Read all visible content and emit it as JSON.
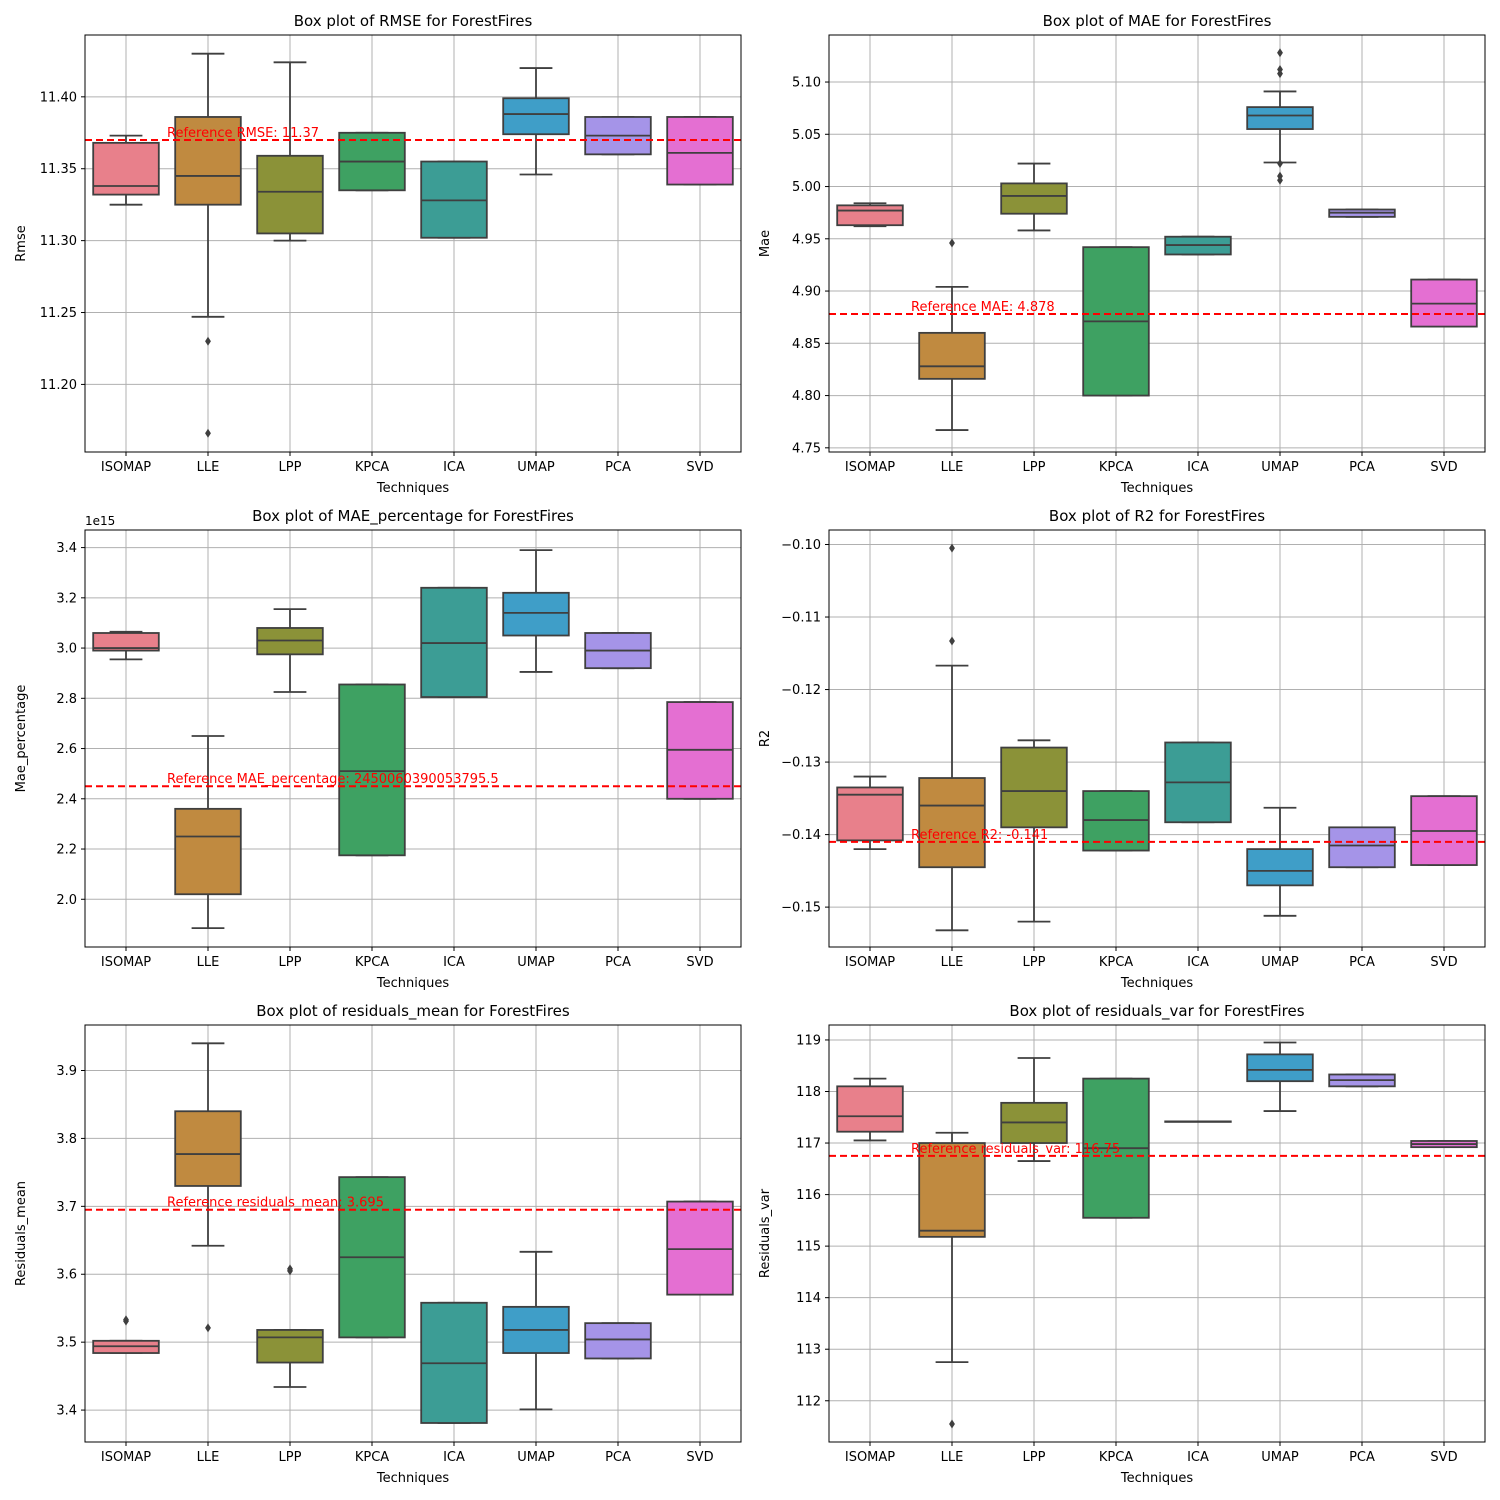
{
  "chart_data": [
    {
      "type": "box",
      "title": "Box plot of RMSE for ForestFires",
      "xlabel": "Techniques",
      "ylabel": "Rmse",
      "categories": [
        "ISOMAP",
        "LLE",
        "LPP",
        "KPCA",
        "ICA",
        "UMAP",
        "PCA",
        "SVD"
      ],
      "colors": [
        "#e8808b",
        "#c08a40",
        "#8b9238",
        "#3ea162",
        "#3c9d95",
        "#3f9ec8",
        "#a594e8",
        "#e46fd2"
      ],
      "yticks": [
        11.2,
        11.25,
        11.3,
        11.35,
        11.4
      ],
      "ytick_labels": [
        "11.20",
        "11.25",
        "11.30",
        "11.35",
        "11.40"
      ],
      "ylim": [
        11.153,
        11.443
      ],
      "grid": true,
      "boxes": [
        {
          "whislo": 11.325,
          "q1": 11.332,
          "median": 11.338,
          "q3": 11.368,
          "whishi": 11.373,
          "fliers": []
        },
        {
          "whislo": 11.247,
          "q1": 11.325,
          "median": 11.345,
          "q3": 11.386,
          "whishi": 11.43,
          "fliers": [
            11.23,
            11.166
          ]
        },
        {
          "whislo": 11.3,
          "q1": 11.305,
          "median": 11.334,
          "q3": 11.359,
          "whishi": 11.424,
          "fliers": []
        },
        {
          "whislo": 11.335,
          "q1": 11.335,
          "median": 11.355,
          "q3": 11.375,
          "whishi": 11.375,
          "fliers": []
        },
        {
          "whislo": 11.302,
          "q1": 11.302,
          "median": 11.328,
          "q3": 11.355,
          "whishi": 11.355,
          "fliers": []
        },
        {
          "whislo": 11.346,
          "q1": 11.374,
          "median": 11.388,
          "q3": 11.399,
          "whishi": 11.42,
          "fliers": []
        },
        {
          "whislo": 11.36,
          "q1": 11.36,
          "median": 11.373,
          "q3": 11.386,
          "whishi": 11.386,
          "fliers": []
        },
        {
          "whislo": 11.339,
          "q1": 11.339,
          "median": 11.361,
          "q3": 11.386,
          "whishi": 11.386,
          "fliers": []
        }
      ],
      "reference": {
        "value": 11.37,
        "label": "Reference RMSE: 11.37"
      }
    },
    {
      "type": "box",
      "title": "Box plot of MAE for ForestFires",
      "xlabel": "Techniques",
      "ylabel": "Mae",
      "categories": [
        "ISOMAP",
        "LLE",
        "LPP",
        "KPCA",
        "ICA",
        "UMAP",
        "PCA",
        "SVD"
      ],
      "colors": [
        "#e8808b",
        "#c08a40",
        "#8b9238",
        "#3ea162",
        "#3c9d95",
        "#3f9ec8",
        "#a594e8",
        "#e46fd2"
      ],
      "yticks": [
        4.75,
        4.8,
        4.85,
        4.9,
        4.95,
        5.0,
        5.05,
        5.1
      ],
      "ytick_labels": [
        "4.75",
        "4.80",
        "4.85",
        "4.90",
        "4.95",
        "5.00",
        "5.05",
        "5.10"
      ],
      "ylim": [
        4.746,
        5.145
      ],
      "grid": true,
      "boxes": [
        {
          "whislo": 4.962,
          "q1": 4.963,
          "median": 4.977,
          "q3": 4.982,
          "whishi": 4.984,
          "fliers": []
        },
        {
          "whislo": 4.767,
          "q1": 4.816,
          "median": 4.828,
          "q3": 4.86,
          "whishi": 4.904,
          "fliers": [
            4.946
          ]
        },
        {
          "whislo": 4.958,
          "q1": 4.974,
          "median": 4.991,
          "q3": 5.003,
          "whishi": 5.022,
          "fliers": []
        },
        {
          "whislo": 4.8,
          "q1": 4.8,
          "median": 4.871,
          "q3": 4.942,
          "whishi": 4.942,
          "fliers": []
        },
        {
          "whislo": 4.935,
          "q1": 4.935,
          "median": 4.944,
          "q3": 4.952,
          "whishi": 4.952,
          "fliers": []
        },
        {
          "whislo": 5.023,
          "q1": 5.055,
          "median": 5.068,
          "q3": 5.076,
          "whishi": 5.091,
          "fliers": [
            5.128,
            5.112,
            5.108,
            5.022,
            5.01,
            5.006
          ]
        },
        {
          "whislo": 4.971,
          "q1": 4.971,
          "median": 4.975,
          "q3": 4.978,
          "whishi": 4.978,
          "fliers": []
        },
        {
          "whislo": 4.866,
          "q1": 4.866,
          "median": 4.888,
          "q3": 4.911,
          "whishi": 4.911,
          "fliers": []
        }
      ],
      "reference": {
        "value": 4.878,
        "label": "Reference MAE: 4.878"
      }
    },
    {
      "type": "box",
      "title": "Box plot of MAE_percentage for ForestFires",
      "xlabel": "Techniques",
      "ylabel": "Mae_percentage",
      "offset_label": "1e15",
      "categories": [
        "ISOMAP",
        "LLE",
        "LPP",
        "KPCA",
        "ICA",
        "UMAP",
        "PCA",
        "SVD"
      ],
      "colors": [
        "#e8808b",
        "#c08a40",
        "#8b9238",
        "#3ea162",
        "#3c9d95",
        "#3f9ec8",
        "#a594e8",
        "#e46fd2"
      ],
      "yticks": [
        2.0,
        2.2,
        2.4,
        2.6,
        2.8,
        3.0,
        3.2,
        3.4
      ],
      "ytick_labels": [
        "2.0",
        "2.2",
        "2.4",
        "2.6",
        "2.8",
        "3.0",
        "3.2",
        "3.4"
      ],
      "ylim": [
        1.81,
        3.47
      ],
      "grid": true,
      "boxes": [
        {
          "whislo": 2.955,
          "q1": 2.99,
          "median": 3.0,
          "q3": 3.06,
          "whishi": 3.065,
          "fliers": []
        },
        {
          "whislo": 1.885,
          "q1": 2.02,
          "median": 2.25,
          "q3": 2.36,
          "whishi": 2.65,
          "fliers": []
        },
        {
          "whislo": 2.825,
          "q1": 2.975,
          "median": 3.03,
          "q3": 3.08,
          "whishi": 3.155,
          "fliers": []
        },
        {
          "whislo": 2.175,
          "q1": 2.175,
          "median": 2.51,
          "q3": 2.855,
          "whishi": 2.855,
          "fliers": []
        },
        {
          "whislo": 2.805,
          "q1": 2.805,
          "median": 3.02,
          "q3": 3.24,
          "whishi": 3.24,
          "fliers": []
        },
        {
          "whislo": 2.905,
          "q1": 3.05,
          "median": 3.14,
          "q3": 3.22,
          "whishi": 3.39,
          "fliers": []
        },
        {
          "whislo": 2.92,
          "q1": 2.92,
          "median": 2.99,
          "q3": 3.06,
          "whishi": 3.06,
          "fliers": []
        },
        {
          "whislo": 2.4,
          "q1": 2.4,
          "median": 2.595,
          "q3": 2.785,
          "whishi": 2.785,
          "fliers": []
        }
      ],
      "reference": {
        "value": 2.45,
        "label": "Reference MAE_percentage: 2450060390053795.5"
      }
    },
    {
      "type": "box",
      "title": "Box plot of R2 for ForestFires",
      "xlabel": "Techniques",
      "ylabel": "R2",
      "categories": [
        "ISOMAP",
        "LLE",
        "LPP",
        "KPCA",
        "ICA",
        "UMAP",
        "PCA",
        "SVD"
      ],
      "colors": [
        "#e8808b",
        "#c08a40",
        "#8b9238",
        "#3ea162",
        "#3c9d95",
        "#3f9ec8",
        "#a594e8",
        "#e46fd2"
      ],
      "yticks": [
        -0.15,
        -0.14,
        -0.13,
        -0.12,
        -0.11,
        -0.1
      ],
      "ytick_labels": [
        "−0.15",
        "−0.14",
        "−0.13",
        "−0.12",
        "−0.11",
        "−0.10"
      ],
      "ylim": [
        -0.1555,
        -0.098
      ],
      "grid": true,
      "boxes": [
        {
          "whislo": -0.142,
          "q1": -0.1408,
          "median": -0.1345,
          "q3": -0.1335,
          "whishi": -0.132,
          "fliers": []
        },
        {
          "whislo": -0.1532,
          "q1": -0.1445,
          "median": -0.136,
          "q3": -0.1322,
          "whishi": -0.1167,
          "fliers": [
            -0.1133,
            -0.1005
          ]
        },
        {
          "whislo": -0.152,
          "q1": -0.139,
          "median": -0.134,
          "q3": -0.128,
          "whishi": -0.127,
          "fliers": []
        },
        {
          "whislo": -0.1422,
          "q1": -0.1422,
          "median": -0.138,
          "q3": -0.134,
          "whishi": -0.134,
          "fliers": []
        },
        {
          "whislo": -0.1383,
          "q1": -0.1383,
          "median": -0.1328,
          "q3": -0.1273,
          "whishi": -0.1273,
          "fliers": []
        },
        {
          "whislo": -0.1512,
          "q1": -0.147,
          "median": -0.145,
          "q3": -0.142,
          "whishi": -0.1363,
          "fliers": []
        },
        {
          "whislo": -0.1445,
          "q1": -0.1445,
          "median": -0.1415,
          "q3": -0.139,
          "whishi": -0.139,
          "fliers": []
        },
        {
          "whislo": -0.1442,
          "q1": -0.1442,
          "median": -0.1395,
          "q3": -0.1347,
          "whishi": -0.1347,
          "fliers": []
        }
      ],
      "reference": {
        "value": -0.141,
        "label": "Reference R2: -0.141"
      }
    },
    {
      "type": "box",
      "title": "Box plot of residuals_mean for ForestFires",
      "xlabel": "Techniques",
      "ylabel": "Residuals_mean",
      "categories": [
        "ISOMAP",
        "LLE",
        "LPP",
        "KPCA",
        "ICA",
        "UMAP",
        "PCA",
        "SVD"
      ],
      "colors": [
        "#e8808b",
        "#c08a40",
        "#8b9238",
        "#3ea162",
        "#3c9d95",
        "#3f9ec8",
        "#a594e8",
        "#e46fd2"
      ],
      "yticks": [
        3.4,
        3.5,
        3.6,
        3.7,
        3.8,
        3.9
      ],
      "ytick_labels": [
        "3.4",
        "3.5",
        "3.6",
        "3.7",
        "3.8",
        "3.9"
      ],
      "ylim": [
        3.353,
        3.967
      ],
      "grid": true,
      "boxes": [
        {
          "whislo": 3.484,
          "q1": 3.484,
          "median": 3.494,
          "q3": 3.502,
          "whishi": 3.502,
          "fliers": [
            3.533,
            3.531
          ]
        },
        {
          "whislo": 3.642,
          "q1": 3.73,
          "median": 3.777,
          "q3": 3.84,
          "whishi": 3.94,
          "fliers": [
            3.521
          ]
        },
        {
          "whislo": 3.434,
          "q1": 3.47,
          "median": 3.507,
          "q3": 3.518,
          "whishi": 3.518,
          "fliers": [
            3.608,
            3.605
          ]
        },
        {
          "whislo": 3.507,
          "q1": 3.507,
          "median": 3.625,
          "q3": 3.743,
          "whishi": 3.743,
          "fliers": []
        },
        {
          "whislo": 3.381,
          "q1": 3.381,
          "median": 3.469,
          "q3": 3.558,
          "whishi": 3.558,
          "fliers": []
        },
        {
          "whislo": 3.401,
          "q1": 3.484,
          "median": 3.518,
          "q3": 3.552,
          "whishi": 3.633,
          "fliers": []
        },
        {
          "whislo": 3.476,
          "q1": 3.476,
          "median": 3.504,
          "q3": 3.528,
          "whishi": 3.528,
          "fliers": []
        },
        {
          "whislo": 3.57,
          "q1": 3.57,
          "median": 3.637,
          "q3": 3.707,
          "whishi": 3.707,
          "fliers": []
        }
      ],
      "reference": {
        "value": 3.695,
        "label": "Reference residuals_mean: 3.695"
      }
    },
    {
      "type": "box",
      "title": "Box plot of residuals_var for ForestFires",
      "xlabel": "Techniques",
      "ylabel": "Residuals_var",
      "categories": [
        "ISOMAP",
        "LLE",
        "LPP",
        "KPCA",
        "ICA",
        "UMAP",
        "PCA",
        "SVD"
      ],
      "colors": [
        "#e8808b",
        "#c08a40",
        "#8b9238",
        "#3ea162",
        "#3c9d95",
        "#3f9ec8",
        "#a594e8",
        "#e46fd2"
      ],
      "yticks": [
        112,
        113,
        114,
        115,
        116,
        117,
        118,
        119
      ],
      "ytick_labels": [
        "112",
        "113",
        "114",
        "115",
        "116",
        "117",
        "118",
        "119"
      ],
      "ylim": [
        111.2,
        119.29
      ],
      "grid": true,
      "boxes": [
        {
          "whislo": 117.05,
          "q1": 117.22,
          "median": 117.52,
          "q3": 118.1,
          "whishi": 118.25,
          "fliers": []
        },
        {
          "whislo": 112.75,
          "q1": 115.18,
          "median": 115.3,
          "q3": 117.0,
          "whishi": 117.2,
          "fliers": [
            111.55
          ]
        },
        {
          "whislo": 116.65,
          "q1": 117.0,
          "median": 117.4,
          "q3": 117.78,
          "whishi": 118.65,
          "fliers": []
        },
        {
          "whislo": 115.55,
          "q1": 115.55,
          "median": 116.9,
          "q3": 118.25,
          "whishi": 118.25,
          "fliers": []
        },
        {
          "whislo": 117.42,
          "q1": 117.42,
          "median": 117.42,
          "q3": 117.42,
          "whishi": 117.42,
          "fliers": []
        },
        {
          "whislo": 117.62,
          "q1": 118.2,
          "median": 118.42,
          "q3": 118.72,
          "whishi": 118.95,
          "fliers": []
        },
        {
          "whislo": 118.1,
          "q1": 118.1,
          "median": 118.22,
          "q3": 118.33,
          "whishi": 118.33,
          "fliers": []
        },
        {
          "whislo": 116.92,
          "q1": 116.92,
          "median": 116.98,
          "q3": 117.04,
          "whishi": 117.04,
          "fliers": []
        }
      ],
      "reference": {
        "value": 116.75,
        "label": "Reference residuals_var: 116.75"
      }
    }
  ]
}
